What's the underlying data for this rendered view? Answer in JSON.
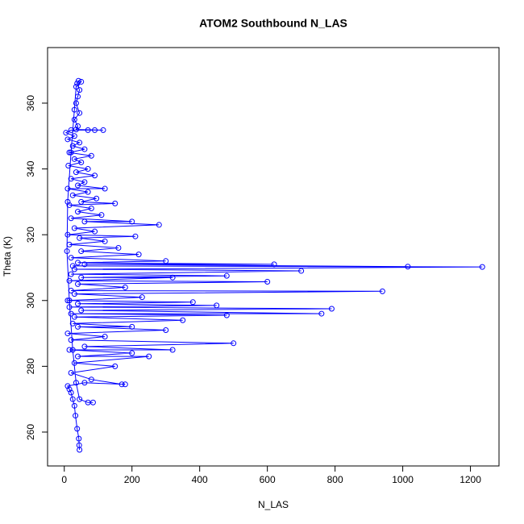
{
  "chart_data": {
    "type": "scatter-line",
    "title": "ATOM2 Southbound N_LAS",
    "x_label": "N_LAS",
    "y_label": "Theta (K)",
    "color": "#0000ff",
    "xlim": [
      -49.4,
      1284.4
    ],
    "ylim": [
      249.7,
      376.9
    ],
    "xticks": [
      0,
      200,
      400,
      600,
      800,
      1000,
      1200
    ],
    "yticks": [
      260,
      280,
      300,
      320,
      340,
      360
    ],
    "x": [
      45,
      44,
      43,
      38,
      33,
      30,
      25,
      20,
      15,
      10,
      60,
      180,
      170,
      80,
      20,
      150,
      30,
      250,
      40,
      200,
      15,
      320,
      60,
      500,
      20,
      120,
      10,
      300,
      40,
      200,
      25,
      350,
      30,
      480,
      20,
      760,
      50,
      790,
      15,
      450,
      40,
      380,
      10,
      230,
      30,
      940,
      20,
      180,
      40,
      600,
      15,
      320,
      50,
      480,
      20,
      700,
      30,
      1235,
      25,
      1015,
      60,
      620,
      40,
      300,
      20,
      220,
      50,
      160,
      15,
      120,
      45,
      210,
      10,
      90,
      30,
      280,
      60,
      200,
      20,
      110,
      40,
      80,
      15,
      150,
      50,
      95,
      25,
      70,
      10,
      120,
      40,
      60,
      20,
      90,
      35,
      70,
      12,
      50,
      30,
      80,
      15,
      60,
      25,
      45,
      10,
      30,
      5,
      20,
      70,
      90,
      115,
      35,
      40,
      30,
      45,
      35,
      40,
      45,
      38,
      42,
      50,
      35,
      30,
      20,
      10,
      8,
      15,
      25,
      35,
      45,
      70,
      85
    ],
    "values": [
      254.6,
      256,
      258,
      261,
      265,
      268,
      270,
      272,
      273,
      274,
      275,
      274.5,
      274.5,
      276,
      278,
      280,
      281,
      283,
      283,
      284,
      285,
      285,
      286,
      287,
      288,
      289,
      290,
      291,
      292,
      292,
      293,
      294,
      295,
      295.5,
      296,
      296,
      297,
      297.5,
      298,
      298.5,
      299,
      299.5,
      300,
      301,
      302,
      302.8,
      303,
      304,
      305,
      305.7,
      306,
      307,
      307,
      307.5,
      308,
      309,
      309.5,
      310.2,
      310.5,
      310.3,
      311,
      311,
      311.5,
      312,
      313,
      314,
      315,
      316,
      317,
      318,
      319,
      319.5,
      320,
      321,
      322,
      323,
      324,
      324,
      325,
      326,
      327,
      328,
      329,
      329.5,
      330,
      331,
      332,
      333,
      334,
      334,
      335,
      336,
      337,
      338,
      339,
      340,
      341,
      342,
      343,
      344,
      345,
      346,
      347,
      348,
      349,
      350,
      351,
      351.8,
      351.8,
      351.8,
      351.8,
      352,
      353,
      355,
      357,
      360,
      362,
      364,
      366,
      366.8,
      366.5,
      365,
      358,
      345,
      330,
      315,
      300,
      285,
      275,
      270,
      269,
      269
    ]
  }
}
